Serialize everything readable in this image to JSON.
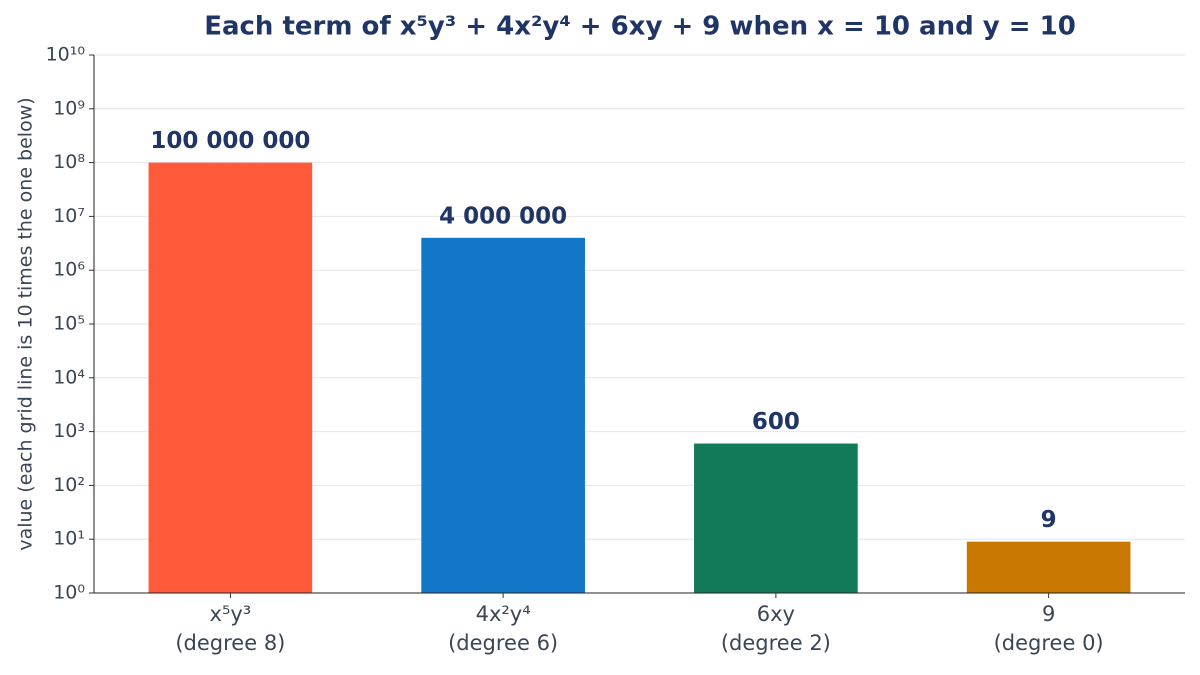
{
  "chart_data": {
    "type": "bar",
    "title": "Each term of x⁵y³ + 4x²y⁴ + 6xy + 9 when x = 10 and y = 10",
    "y_label": "value (each grid line is 10 times the one below)",
    "categories": [
      "x⁵y³\n(degree 8)",
      "4x²y⁴\n(degree 6)",
      "6xy\n(degree 2)",
      "9\n(degree 0)"
    ],
    "values": [
      100000000,
      4000000,
      600,
      9
    ],
    "value_labels": [
      "100 000 000",
      "4 000 000",
      "600",
      "9"
    ],
    "colors": [
      "#ff5a3a",
      "#1276c9",
      "#127a5b",
      "#c87800"
    ],
    "y_scale": "log",
    "ylim": [
      1,
      10000000000
    ],
    "yticks": [
      {
        "value": 1,
        "label": "10⁰"
      },
      {
        "value": 10,
        "label": "10¹"
      },
      {
        "value": 100,
        "label": "10²"
      },
      {
        "value": 1000,
        "label": "10³"
      },
      {
        "value": 10000,
        "label": "10⁴"
      },
      {
        "value": 100000,
        "label": "10⁵"
      },
      {
        "value": 1000000,
        "label": "10⁶"
      },
      {
        "value": 10000000,
        "label": "10⁷"
      },
      {
        "value": 100000000,
        "label": "10⁸"
      },
      {
        "value": 1000000000,
        "label": "10⁹"
      },
      {
        "value": 10000000000,
        "label": "10¹⁰"
      }
    ],
    "grid": true
  }
}
